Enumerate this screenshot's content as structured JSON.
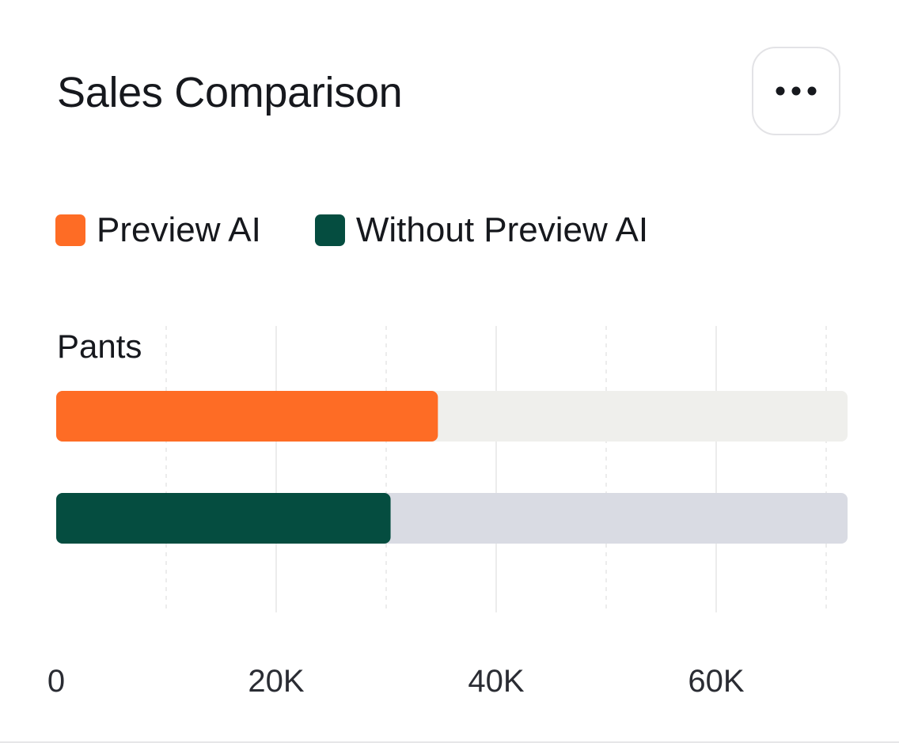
{
  "title": "Sales Comparison",
  "menu_button": {
    "icon": "more-horizontal-icon"
  },
  "colors": {
    "preview_ai": "#fe6c25",
    "without_preview_ai": "#054d40",
    "track_preview_ai": "#efefec",
    "track_without": "#d9dbe3",
    "text": "#16181d",
    "grid": "#e6e6e6"
  },
  "chart_data": {
    "type": "bar",
    "orientation": "horizontal",
    "title": "Sales Comparison",
    "categories": [
      "Pants"
    ],
    "series": [
      {
        "name": "Preview AI",
        "values": [
          34700
        ]
      },
      {
        "name": "Without Preview AI",
        "values": [
          30400
        ]
      }
    ],
    "xlim": [
      0,
      72500
    ],
    "xticks": [
      0,
      20000,
      40000,
      60000
    ],
    "xtick_labels": [
      "0",
      "20K",
      "40K",
      "60K"
    ],
    "grid": true,
    "legend_position": "top-left"
  }
}
